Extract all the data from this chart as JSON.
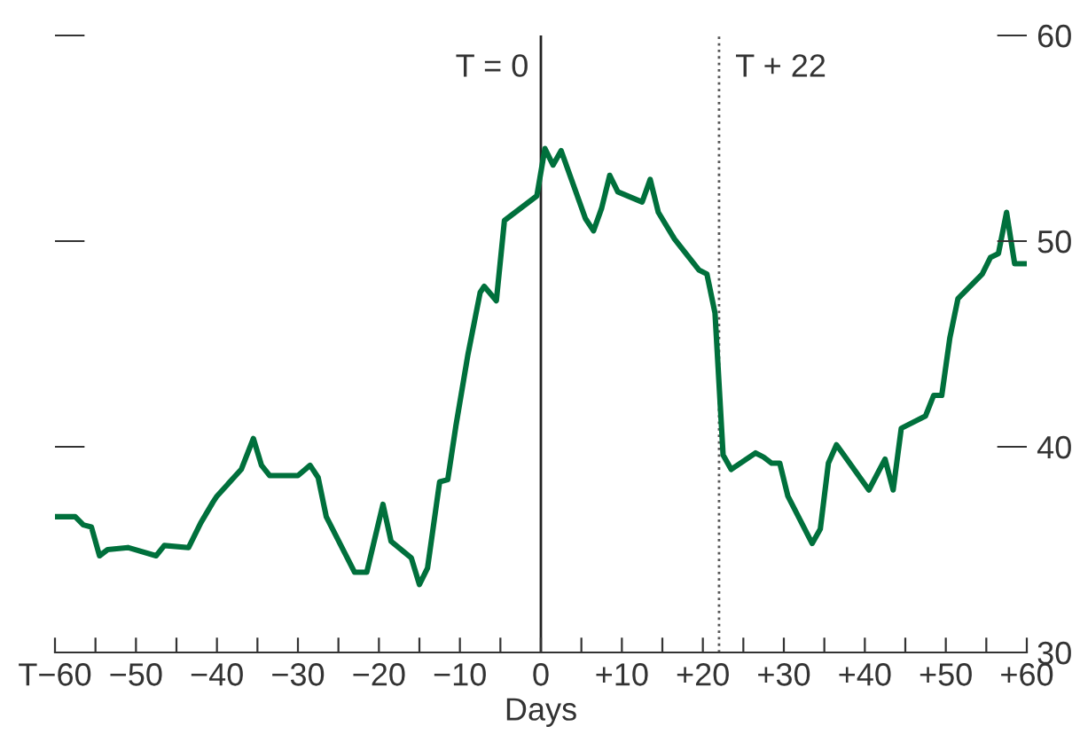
{
  "chart_data": {
    "type": "line",
    "xlabel": "Days",
    "xlim": [
      -60,
      60
    ],
    "ylim": [
      30,
      60
    ],
    "xticks": [
      {
        "value": -60,
        "label": "T−60"
      },
      {
        "value": -55,
        "label": null
      },
      {
        "value": -50,
        "label": "−50"
      },
      {
        "value": -45,
        "label": null
      },
      {
        "value": -40,
        "label": "−40"
      },
      {
        "value": -35,
        "label": null
      },
      {
        "value": -30,
        "label": "−30"
      },
      {
        "value": -25,
        "label": null
      },
      {
        "value": -20,
        "label": "−20"
      },
      {
        "value": -15,
        "label": null
      },
      {
        "value": -10,
        "label": "−10"
      },
      {
        "value": -5,
        "label": null
      },
      0,
      {
        "value": 5,
        "label": null
      },
      {
        "value": 10,
        "label": "+10"
      },
      {
        "value": 15,
        "label": null
      },
      {
        "value": 20,
        "label": "+20"
      },
      {
        "value": 25,
        "label": null
      },
      {
        "value": 30,
        "label": "+30"
      },
      {
        "value": 35,
        "label": null
      },
      {
        "value": 40,
        "label": "+40"
      },
      {
        "value": 45,
        "label": null
      },
      {
        "value": 50,
        "label": "+50"
      },
      {
        "value": 55,
        "label": null
      },
      {
        "value": 60,
        "label": "+60"
      }
    ],
    "yticks": [
      30,
      40,
      50,
      60
    ],
    "grid": false,
    "legend": false,
    "marker": "none",
    "line_style": "solid",
    "ref_lines": [
      {
        "axis": "x",
        "value": 0,
        "label": "T = 0",
        "color": "#222222",
        "line_style": "solid"
      },
      {
        "axis": "x",
        "value": 22,
        "label": "T + 22",
        "color": "#555555",
        "line_style": "dotted"
      }
    ],
    "series": [
      {
        "color": "#00703c",
        "x": [
          -60,
          -57.5,
          -56.5,
          -55.5,
          -54.5,
          -53.5,
          -51,
          -47.5,
          -46.5,
          -43.5,
          -42,
          -40.5,
          -40,
          -37,
          -35.5,
          -34.5,
          -33.5,
          -30,
          -28.5,
          -27.5,
          -26.5,
          -23,
          -21.5,
          -19.5,
          -18.5,
          -16,
          -15,
          -14,
          -12.5,
          -11.5,
          -10.5,
          -9,
          -7.5,
          -7,
          -5.5,
          -4.5,
          -0.5,
          0.5,
          1.5,
          2.5,
          5.5,
          6.5,
          7.5,
          8.5,
          9.5,
          12.5,
          13.5,
          14.5,
          16.5,
          19.5,
          20.5,
          21.5,
          22.5,
          23.5,
          26.5,
          27.5,
          28.5,
          29.5,
          30.5,
          33.5,
          34.5,
          35.5,
          36.5,
          40.5,
          42.5,
          43.5,
          44.5,
          47.5,
          48.5,
          49.5,
          50.5,
          51.5,
          54.5,
          55.5,
          56.5,
          57.5,
          58.5,
          60
        ],
        "values": [
          36.6,
          36.6,
          36.2,
          36.1,
          34.7,
          35.0,
          35.1,
          34.7,
          35.2,
          35.1,
          36.3,
          37.3,
          37.6,
          38.9,
          40.4,
          39.1,
          38.6,
          38.6,
          39.1,
          38.5,
          36.6,
          33.9,
          33.9,
          37.2,
          35.4,
          34.6,
          33.3,
          34.1,
          38.3,
          38.4,
          41.0,
          44.5,
          47.5,
          47.8,
          47.1,
          51.0,
          52.2,
          54.5,
          53.7,
          54.4,
          51.1,
          50.5,
          51.6,
          53.2,
          52.4,
          51.9,
          53.0,
          51.4,
          50.1,
          48.6,
          48.4,
          46.5,
          39.6,
          38.9,
          39.7,
          39.5,
          39.2,
          39.2,
          37.6,
          35.3,
          36.0,
          39.2,
          40.1,
          37.9,
          39.4,
          37.9,
          40.9,
          41.5,
          42.5,
          42.5,
          45.3,
          47.2,
          48.4,
          49.2,
          49.4,
          51.4,
          48.9,
          48.9
        ]
      }
    ]
  }
}
